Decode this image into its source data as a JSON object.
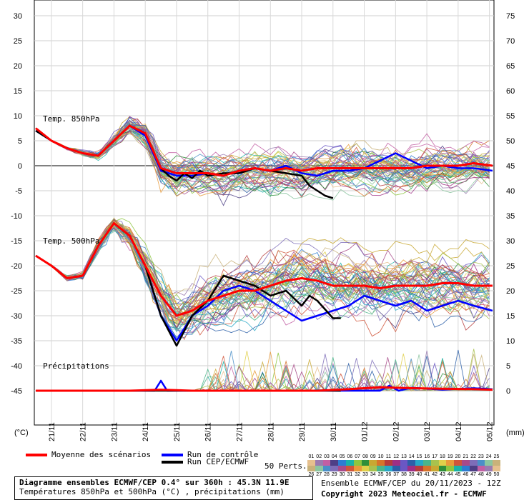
{
  "chart_data": {
    "type": "line",
    "title": "Diagramme ensembles ECMWF/CEP 0.4° sur 360h : 45.3N 11.9E",
    "subtitle": "Températures 850hPa et 500hPa (°C) , précipitations (mm)",
    "left_axis": {
      "unit": "(°C)",
      "ticks": [
        30,
        25,
        20,
        15,
        10,
        5,
        0,
        -5,
        -10,
        -15,
        -20,
        -25,
        -30,
        -35,
        -40,
        -45
      ]
    },
    "right_axis": {
      "unit": "(mm)",
      "ticks": [
        75,
        70,
        65,
        60,
        55,
        50,
        45,
        40,
        35,
        30,
        25,
        20,
        15,
        10,
        5,
        0
      ]
    },
    "x_ticks": [
      "21/11",
      "22/11",
      "23/11",
      "24/11",
      "25/11",
      "26/11",
      "27/11",
      "28/11",
      "29/11",
      "30/11",
      "01/12",
      "02/12",
      "03/12",
      "04/12",
      "05/12"
    ],
    "panels": [
      {
        "label": "Temp. 850hPa",
        "mean": [
          [
            0,
            7.5
          ],
          [
            0.5,
            5
          ],
          [
            1,
            3.5
          ],
          [
            1.5,
            2.5
          ],
          [
            2,
            2
          ],
          [
            2.5,
            5
          ],
          [
            3,
            8
          ],
          [
            3.5,
            6.5
          ],
          [
            4,
            -0.5
          ],
          [
            4.5,
            -1.5
          ],
          [
            5,
            -1.5
          ],
          [
            5.5,
            -1.5
          ],
          [
            6,
            -2
          ],
          [
            6.5,
            -1
          ],
          [
            7,
            -0.5
          ],
          [
            7.5,
            -1
          ],
          [
            8,
            -0.5
          ],
          [
            8.5,
            -1
          ],
          [
            9,
            -0.5
          ],
          [
            9.5,
            -0.5
          ],
          [
            10,
            -0.5
          ],
          [
            10.5,
            -0.5
          ],
          [
            11,
            -0.5
          ],
          [
            11.5,
            -0.5
          ],
          [
            12,
            -0.5
          ],
          [
            12.5,
            0
          ],
          [
            13,
            0
          ],
          [
            13.5,
            0
          ],
          [
            14,
            0.5
          ],
          [
            14.6,
            0
          ]
        ],
        "control": [
          [
            0,
            7
          ],
          [
            0.5,
            5
          ],
          [
            1,
            3.5
          ],
          [
            1.5,
            2.5
          ],
          [
            2,
            2
          ],
          [
            2.5,
            5
          ],
          [
            3,
            8
          ],
          [
            3.5,
            6
          ],
          [
            4,
            -1
          ],
          [
            4.5,
            -2
          ],
          [
            5,
            -2
          ],
          [
            5.5,
            -1.5
          ],
          [
            6,
            -2
          ],
          [
            6.5,
            -1
          ],
          [
            7,
            -0.5
          ],
          [
            7.5,
            -1
          ],
          [
            8,
            0
          ],
          [
            8.5,
            -1.5
          ],
          [
            9,
            -2
          ],
          [
            9.5,
            -1
          ],
          [
            10,
            -1
          ],
          [
            10.5,
            -0.5
          ],
          [
            11,
            1
          ],
          [
            11.5,
            2.5
          ],
          [
            12,
            1
          ],
          [
            12.5,
            -0.5
          ],
          [
            13,
            0
          ],
          [
            13.5,
            -0.5
          ],
          [
            14,
            -0.5
          ],
          [
            14.6,
            -1
          ]
        ],
        "run": [
          [
            0,
            7
          ],
          [
            0.5,
            5
          ],
          [
            1,
            3.5
          ],
          [
            1.5,
            2.5
          ],
          [
            2,
            2
          ],
          [
            2.5,
            5
          ],
          [
            3,
            8
          ],
          [
            3.5,
            6.5
          ],
          [
            4,
            -0.5
          ],
          [
            4.25,
            -2
          ],
          [
            4.5,
            -3
          ],
          [
            4.75,
            -1.5
          ],
          [
            5,
            -2.5
          ],
          [
            5.25,
            -1
          ],
          [
            5.5,
            -2
          ],
          [
            6,
            -1.5
          ],
          [
            6.5,
            -1.5
          ],
          [
            7,
            -0.5
          ],
          [
            7.5,
            -1
          ],
          [
            8,
            -1.5
          ],
          [
            8.5,
            -2
          ],
          [
            8.75,
            -4
          ],
          [
            9,
            -5
          ],
          [
            9.25,
            -6
          ],
          [
            9.5,
            -6.5
          ]
        ]
      },
      {
        "label": "Temp. 500hPa",
        "mean": [
          [
            0,
            -18
          ],
          [
            0.5,
            -20
          ],
          [
            1,
            -22.5
          ],
          [
            1.5,
            -22
          ],
          [
            2,
            -16
          ],
          [
            2.5,
            -11.5
          ],
          [
            3,
            -14
          ],
          [
            3.5,
            -20
          ],
          [
            4,
            -26
          ],
          [
            4.5,
            -30
          ],
          [
            5,
            -29
          ],
          [
            5.5,
            -27
          ],
          [
            6,
            -26
          ],
          [
            6.5,
            -25
          ],
          [
            7,
            -25
          ],
          [
            7.5,
            -24
          ],
          [
            8,
            -23
          ],
          [
            8.5,
            -22.5
          ],
          [
            9,
            -23
          ],
          [
            9.5,
            -24
          ],
          [
            10,
            -24
          ],
          [
            10.5,
            -24
          ],
          [
            11,
            -24.5
          ],
          [
            11.5,
            -24
          ],
          [
            12,
            -24
          ],
          [
            12.5,
            -24
          ],
          [
            13,
            -23.5
          ],
          [
            13.5,
            -23.5
          ],
          [
            14,
            -24
          ],
          [
            14.6,
            -24
          ]
        ],
        "control": [
          [
            0,
            -18
          ],
          [
            0.5,
            -20
          ],
          [
            1,
            -22.5
          ],
          [
            1.5,
            -22
          ],
          [
            2,
            -16
          ],
          [
            2.5,
            -11.5
          ],
          [
            3,
            -14
          ],
          [
            3.5,
            -20
          ],
          [
            4,
            -30
          ],
          [
            4.5,
            -35
          ],
          [
            5,
            -30
          ],
          [
            5.5,
            -28
          ],
          [
            6,
            -25
          ],
          [
            6.5,
            -24
          ],
          [
            7,
            -25
          ],
          [
            7.5,
            -27
          ],
          [
            8,
            -29
          ],
          [
            8.5,
            -31
          ],
          [
            9,
            -30
          ],
          [
            9.5,
            -29
          ],
          [
            10,
            -28
          ],
          [
            10.5,
            -26
          ],
          [
            11,
            -27
          ],
          [
            11.5,
            -28
          ],
          [
            12,
            -27
          ],
          [
            12.5,
            -29
          ],
          [
            13,
            -28
          ],
          [
            13.5,
            -27
          ],
          [
            14,
            -28
          ],
          [
            14.6,
            -29
          ]
        ],
        "run": [
          [
            0,
            -18
          ],
          [
            0.5,
            -20
          ],
          [
            1,
            -22.5
          ],
          [
            1.5,
            -22
          ],
          [
            2,
            -16
          ],
          [
            2.5,
            -11.5
          ],
          [
            3,
            -14
          ],
          [
            3.5,
            -20
          ],
          [
            4,
            -30
          ],
          [
            4.5,
            -36
          ],
          [
            5,
            -30
          ],
          [
            5.5,
            -27
          ],
          [
            6,
            -22
          ],
          [
            6.5,
            -23
          ],
          [
            7,
            -24
          ],
          [
            7.5,
            -26
          ],
          [
            8,
            -25
          ],
          [
            8.5,
            -28
          ],
          [
            8.75,
            -26
          ],
          [
            9,
            -27
          ],
          [
            9.5,
            -30.5
          ],
          [
            9.75,
            -30.5
          ]
        ]
      },
      {
        "label": "Précipitations",
        "mean": [
          [
            0,
            0
          ],
          [
            1,
            0
          ],
          [
            2,
            0
          ],
          [
            3,
            0
          ],
          [
            4,
            0.2
          ],
          [
            5,
            0
          ],
          [
            6,
            0
          ],
          [
            7,
            0
          ],
          [
            8,
            0
          ],
          [
            9,
            0
          ],
          [
            10,
            0.3
          ],
          [
            11,
            0.7
          ],
          [
            12,
            0.5
          ],
          [
            13,
            0.4
          ],
          [
            14,
            0.3
          ],
          [
            14.6,
            0.2
          ]
        ],
        "control": [
          [
            0,
            0
          ],
          [
            3.8,
            0
          ],
          [
            4,
            2
          ],
          [
            4.2,
            0
          ],
          [
            11,
            0
          ],
          [
            11.3,
            1
          ],
          [
            11.6,
            0
          ],
          [
            12,
            0.6
          ],
          [
            13,
            0.2
          ],
          [
            14,
            0.5
          ],
          [
            14.6,
            0.3
          ]
        ],
        "run": [
          [
            0,
            0
          ],
          [
            9.75,
            0
          ]
        ]
      }
    ],
    "legend": [
      {
        "label": "Moyenne des scénarios",
        "color": "#ff0000"
      },
      {
        "label": "Run de contrôle",
        "color": "#0000ff"
      },
      {
        "label": "Run CEP/ECMWF",
        "color": "#000000"
      }
    ],
    "perts_label": "50 Perts.",
    "perts_top": [
      "01",
      "02",
      "03",
      "04",
      "05",
      "06",
      "07",
      "08",
      "09",
      "10",
      "11",
      "12",
      "13",
      "14",
      "15",
      "16",
      "17",
      "18",
      "19",
      "20",
      "21",
      "22",
      "23",
      "24",
      "25"
    ],
    "perts_bottom": [
      "26",
      "27",
      "28",
      "29",
      "30",
      "31",
      "32",
      "33",
      "34",
      "35",
      "36",
      "37",
      "38",
      "39",
      "40",
      "41",
      "42",
      "43",
      "44",
      "45",
      "46",
      "47",
      "48",
      "49",
      "50"
    ],
    "perts_colors": [
      "#e6c08e",
      "#9a7bb0",
      "#c25fa3",
      "#4e3f86",
      "#2d7dd2",
      "#1ab2a8",
      "#8dc63f",
      "#2f8f3a",
      "#c8a832",
      "#d6742b",
      "#b63c3c",
      "#9e2f85",
      "#6a57c4",
      "#2c5fa8",
      "#27a7c7",
      "#4bb58a",
      "#a8c24e",
      "#e0d04a",
      "#e89a3a",
      "#d0553a",
      "#a84a8a",
      "#7e6db8",
      "#4a8fc8",
      "#8cc6a0",
      "#c9b27a"
    ],
    "info_line1_left": "Ensemble ECMWF/CEP du 20/11/2023 - 12Z",
    "info_line2_left": "Copyright 2023 Meteociel.fr - ECMWF"
  }
}
